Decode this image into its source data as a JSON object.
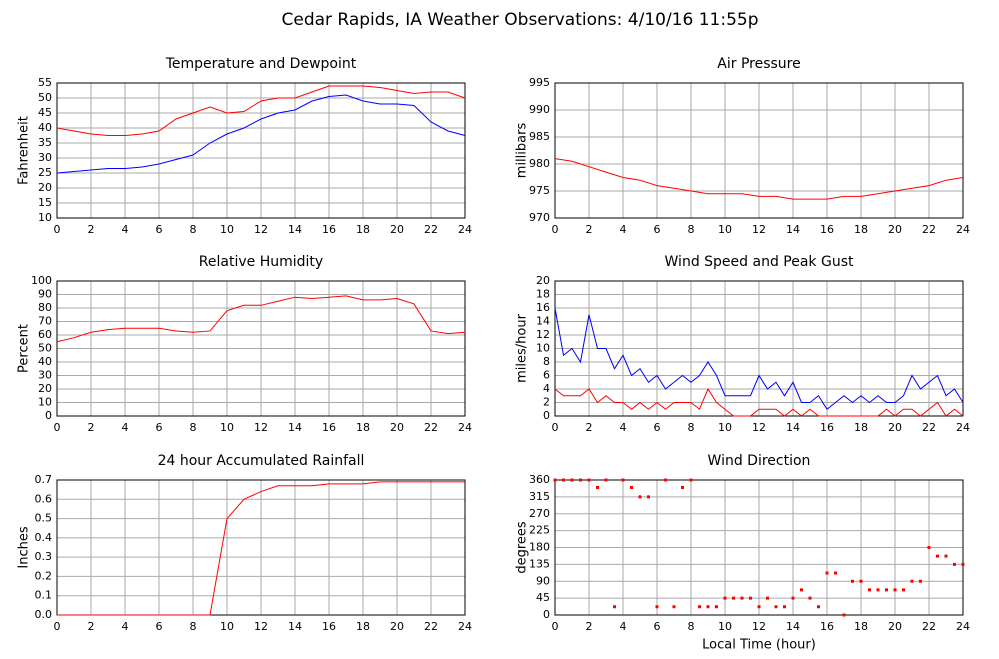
{
  "title": "Cedar Rapids, IA Weather Observations: 4/10/16 11:55p",
  "chart_data": [
    {
      "type": "line",
      "title": "Temperature and Dewpoint",
      "ylabel": "Fahrenheit",
      "x": [
        0,
        1,
        2,
        3,
        4,
        5,
        6,
        7,
        8,
        9,
        10,
        11,
        12,
        13,
        14,
        15,
        16,
        17,
        18,
        19,
        20,
        21,
        22,
        23,
        24
      ],
      "series": [
        {
          "color": "#ff0000",
          "values": [
            40,
            39,
            38,
            37.5,
            37.5,
            38,
            39,
            43,
            45,
            47,
            45,
            45.5,
            49,
            50,
            50,
            52,
            54,
            54,
            54,
            53.5,
            52.5,
            51.5,
            52,
            52,
            50
          ]
        },
        {
          "color": "#0000ff",
          "values": [
            25,
            25.5,
            26,
            26.5,
            26.5,
            27,
            28,
            29.5,
            31,
            35,
            38,
            40,
            43,
            45,
            46,
            49,
            50.5,
            51,
            49,
            48,
            48,
            47.5,
            42,
            39,
            37.5
          ]
        }
      ],
      "xlim": [
        0,
        24
      ],
      "xticks": [
        0,
        2,
        4,
        6,
        8,
        10,
        12,
        14,
        16,
        18,
        20,
        22,
        24
      ],
      "ylim": [
        10,
        55
      ],
      "yticks": [
        10,
        15,
        20,
        25,
        30,
        35,
        40,
        45,
        50,
        55
      ],
      "grid": true
    },
    {
      "type": "line",
      "title": "Air Pressure",
      "ylabel": "millibars",
      "x": [
        0,
        1,
        2,
        3,
        4,
        5,
        6,
        7,
        8,
        9,
        10,
        11,
        12,
        13,
        14,
        15,
        16,
        17,
        18,
        19,
        20,
        21,
        22,
        23,
        24
      ],
      "series": [
        {
          "color": "#ff0000",
          "values": [
            981,
            980.5,
            979.5,
            978.5,
            977.5,
            977,
            976,
            975.5,
            975,
            974.5,
            974.5,
            974.5,
            974,
            974,
            973.5,
            973.5,
            973.5,
            974,
            974,
            974.5,
            975,
            975.5,
            976,
            977,
            977.5
          ]
        }
      ],
      "xlim": [
        0,
        24
      ],
      "xticks": [
        0,
        2,
        4,
        6,
        8,
        10,
        12,
        14,
        16,
        18,
        20,
        22,
        24
      ],
      "ylim": [
        970,
        995
      ],
      "yticks": [
        970,
        975,
        980,
        985,
        990,
        995
      ],
      "grid": true
    },
    {
      "type": "line",
      "title": "Relative Humidity",
      "ylabel": "Percent",
      "x": [
        0,
        1,
        2,
        3,
        4,
        5,
        6,
        7,
        8,
        9,
        10,
        11,
        12,
        13,
        14,
        15,
        16,
        17,
        18,
        19,
        20,
        21,
        22,
        23,
        24
      ],
      "series": [
        {
          "color": "#ff0000",
          "values": [
            55,
            58,
            62,
            64,
            65,
            65,
            65,
            63,
            62,
            63,
            78,
            82,
            82,
            85,
            88,
            87,
            88,
            89,
            86,
            86,
            87,
            83,
            63,
            61,
            62
          ]
        }
      ],
      "xlim": [
        0,
        24
      ],
      "xticks": [
        0,
        2,
        4,
        6,
        8,
        10,
        12,
        14,
        16,
        18,
        20,
        22,
        24
      ],
      "ylim": [
        0,
        100
      ],
      "yticks": [
        0,
        10,
        20,
        30,
        40,
        50,
        60,
        70,
        80,
        90,
        100
      ],
      "grid": true
    },
    {
      "type": "line",
      "title": "Wind Speed and Peak Gust",
      "ylabel": "miles/hour",
      "x": [
        0,
        0.5,
        1,
        1.5,
        2,
        2.5,
        3,
        3.5,
        4,
        4.5,
        5,
        5.5,
        6,
        6.5,
        7,
        7.5,
        8,
        8.5,
        9,
        9.5,
        10,
        10.5,
        11,
        11.5,
        12,
        12.5,
        13,
        13.5,
        14,
        14.5,
        15,
        15.5,
        16,
        16.5,
        17,
        17.5,
        18,
        18.5,
        19,
        19.5,
        20,
        20.5,
        21,
        21.5,
        22,
        22.5,
        23,
        23.5,
        24
      ],
      "series": [
        {
          "color": "#0000ff",
          "values": [
            16,
            9,
            10,
            8,
            15,
            10,
            10,
            7,
            9,
            6,
            7,
            5,
            6,
            4,
            5,
            6,
            5,
            6,
            8,
            6,
            3,
            3,
            3,
            3,
            6,
            4,
            5,
            3,
            5,
            2,
            2,
            3,
            1,
            2,
            3,
            2,
            3,
            2,
            3,
            2,
            2,
            3,
            6,
            4,
            5,
            6,
            3,
            4,
            2
          ]
        },
        {
          "color": "#ff0000",
          "values": [
            4,
            3,
            3,
            3,
            4,
            2,
            3,
            2,
            2,
            1,
            2,
            1,
            2,
            1,
            2,
            2,
            2,
            1,
            4,
            2,
            1,
            0,
            0,
            0,
            1,
            1,
            1,
            0,
            1,
            0,
            1,
            0,
            0,
            0,
            0,
            0,
            0,
            0,
            0,
            1,
            0,
            1,
            1,
            0,
            1,
            2,
            0,
            1,
            0
          ]
        }
      ],
      "xlim": [
        0,
        24
      ],
      "xticks": [
        0,
        2,
        4,
        6,
        8,
        10,
        12,
        14,
        16,
        18,
        20,
        22,
        24
      ],
      "ylim": [
        0,
        20
      ],
      "yticks": [
        0,
        2,
        4,
        6,
        8,
        10,
        12,
        14,
        16,
        18,
        20
      ],
      "grid": true
    },
    {
      "type": "line",
      "title": "24 hour Accumulated Rainfall",
      "ylabel": "Inches",
      "x": [
        0,
        1,
        2,
        3,
        4,
        5,
        6,
        7,
        8,
        9,
        10,
        11,
        12,
        13,
        14,
        15,
        16,
        17,
        18,
        19,
        20,
        21,
        22,
        23,
        24
      ],
      "series": [
        {
          "color": "#ff0000",
          "values": [
            0,
            0,
            0,
            0,
            0,
            0,
            0,
            0,
            0,
            0,
            0.5,
            0.6,
            0.64,
            0.67,
            0.67,
            0.67,
            0.68,
            0.68,
            0.68,
            0.69,
            0.69,
            0.69,
            0.69,
            0.69,
            0.69
          ]
        }
      ],
      "xlim": [
        0,
        24
      ],
      "xticks": [
        0,
        2,
        4,
        6,
        8,
        10,
        12,
        14,
        16,
        18,
        20,
        22,
        24
      ],
      "ylim": [
        0,
        0.7
      ],
      "yticks": [
        {
          "value": 0,
          "label": "0.0"
        },
        0.1,
        0.2,
        0.3,
        0.4,
        0.5,
        0.6,
        0.7
      ],
      "grid": true
    },
    {
      "type": "scatter",
      "title": "Wind Direction",
      "ylabel": "degrees",
      "xlabel": "Local Time (hour)",
      "x": [
        0,
        0.5,
        1,
        1.5,
        2,
        2.5,
        3,
        3.5,
        4,
        4.5,
        5,
        5.5,
        6,
        6.5,
        7,
        7.5,
        8,
        8.5,
        9,
        9.5,
        10,
        10.5,
        11,
        11.5,
        12,
        12.5,
        13,
        13.5,
        14,
        14.5,
        15,
        15.5,
        16,
        16.5,
        17,
        17.5,
        18,
        18.5,
        19,
        19.5,
        20,
        20.5,
        21,
        21.5,
        22,
        22.5,
        23,
        23.5,
        24
      ],
      "series": [
        {
          "color": "#ff0000",
          "values": [
            360,
            360,
            360,
            360,
            360,
            340,
            360,
            22,
            360,
            340,
            315,
            315,
            22,
            360,
            22,
            340,
            360,
            22,
            22,
            22,
            45,
            45,
            45,
            45,
            22,
            45,
            22,
            22,
            45,
            67,
            45,
            22,
            112,
            112,
            0,
            90,
            90,
            67,
            67,
            67,
            67,
            67,
            90,
            90,
            180,
            157,
            157,
            135,
            135
          ]
        }
      ],
      "xlim": [
        0,
        24
      ],
      "xticks": [
        0,
        2,
        4,
        6,
        8,
        10,
        12,
        14,
        16,
        18,
        20,
        22,
        24
      ],
      "ylim": [
        0,
        360
      ],
      "yticks": [
        0,
        45,
        90,
        135,
        180,
        225,
        270,
        315,
        360
      ],
      "grid": true
    }
  ]
}
